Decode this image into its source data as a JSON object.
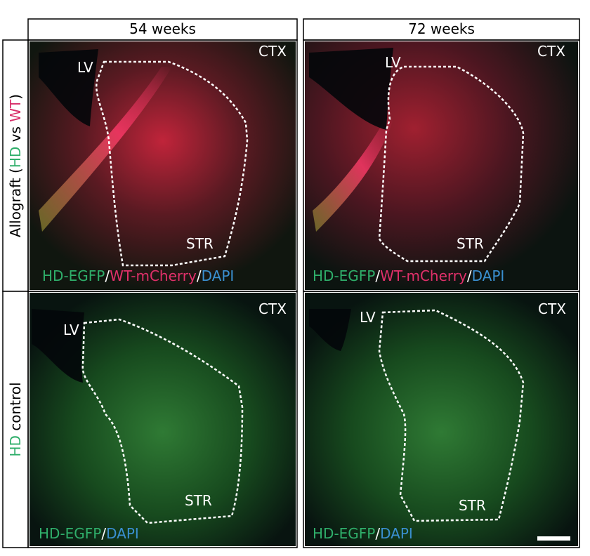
{
  "columns": [
    "54 weeks",
    "72 weeks"
  ],
  "rows": [
    {
      "label_parts": [
        "Allograft (",
        "HD",
        " vs ",
        "WT",
        ")"
      ]
    },
    {
      "label_parts": [
        "HD",
        " control"
      ]
    }
  ],
  "panels": [
    {
      "labels": [
        "LV",
        "CTX",
        "STR"
      ],
      "stain_parts": [
        "HD-EGFP",
        "/",
        "WT-mCherry",
        "/",
        "DAPI"
      ]
    },
    {
      "labels": [
        "LV",
        "CTX",
        "STR"
      ],
      "stain_parts": [
        "HD-EGFP",
        "/",
        "WT-mCherry",
        "/",
        "DAPI"
      ]
    },
    {
      "labels": [
        "LV",
        "CTX",
        "STR"
      ],
      "stain_parts": [
        "HD-EGFP",
        "/",
        "DAPI"
      ]
    },
    {
      "labels": [
        "LV",
        "CTX",
        "STR"
      ],
      "stain_parts": [
        "HD-EGFP",
        "/",
        "DAPI"
      ]
    }
  ]
}
